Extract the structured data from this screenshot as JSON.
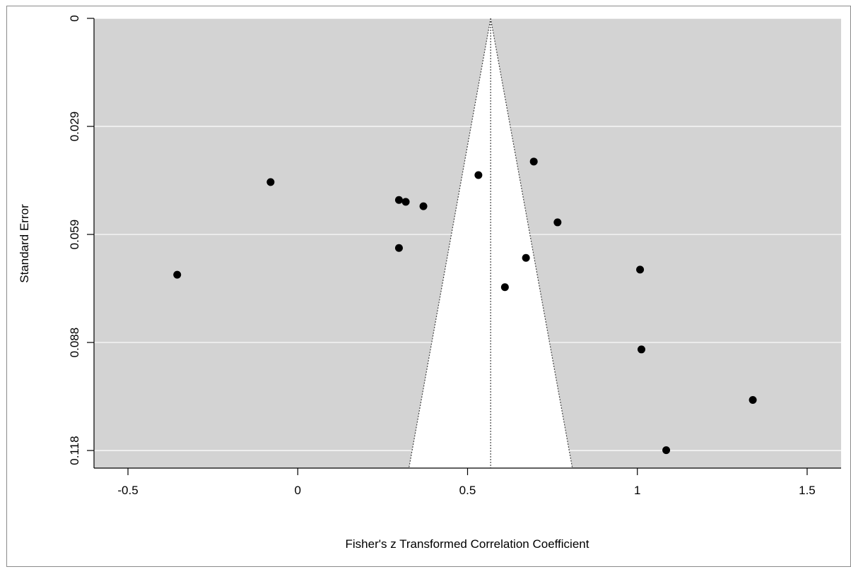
{
  "chart_data": {
    "type": "scatter",
    "subtype": "funnel-plot",
    "title": "",
    "xlabel": "Fisher's z Transformed Correlation Coefficient",
    "ylabel": "Standard Error",
    "xlim": [
      -0.6,
      1.6
    ],
    "ylim": [
      0.1228,
      0
    ],
    "y_inverted": true,
    "x_ticks": [
      -0.5,
      0,
      0.5,
      1,
      1.5
    ],
    "x_tick_labels": [
      "-0.5",
      "0",
      "0.5",
      "1",
      "1.5"
    ],
    "y_ticks": [
      0,
      0.0295,
      0.059,
      0.0885,
      0.118
    ],
    "y_tick_labels": [
      "0",
      "0.029",
      "0.059",
      "0.088",
      "0.118"
    ],
    "grid": true,
    "horizontal_gridlines_only": true,
    "legend": "none",
    "center_estimate": 0.568,
    "funnel_apex_se": 0,
    "funnel_base_se": 0.1228,
    "funnel_multiplier": 1.96,
    "colors": {
      "panel_background": "#d3d3d3",
      "funnel_region": "#ffffff",
      "gridline": "#ffffff",
      "points": "#000000",
      "funnel_lines": "#444444"
    },
    "points": [
      {
        "x": -0.355,
        "y": 0.07
      },
      {
        "x": -0.08,
        "y": 0.0447
      },
      {
        "x": 0.298,
        "y": 0.0496
      },
      {
        "x": 0.318,
        "y": 0.0501
      },
      {
        "x": 0.37,
        "y": 0.0513
      },
      {
        "x": 0.298,
        "y": 0.0627
      },
      {
        "x": 0.532,
        "y": 0.0428
      },
      {
        "x": 0.695,
        "y": 0.0391
      },
      {
        "x": 0.765,
        "y": 0.0557
      },
      {
        "x": 0.672,
        "y": 0.0654
      },
      {
        "x": 0.61,
        "y": 0.0734
      },
      {
        "x": 1.008,
        "y": 0.0686
      },
      {
        "x": 1.012,
        "y": 0.0904
      },
      {
        "x": 1.34,
        "y": 0.1042
      },
      {
        "x": 1.085,
        "y": 0.1179
      }
    ]
  }
}
